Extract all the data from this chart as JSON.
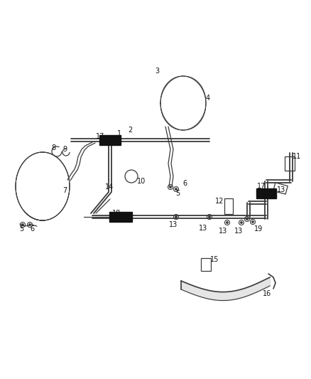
{
  "bg_color": "#ffffff",
  "line_color": "#3a3a3a",
  "black_block_color": "#111111",
  "figsize": [
    4.38,
    5.33
  ],
  "dpi": 100,
  "label_fs": 7.0
}
